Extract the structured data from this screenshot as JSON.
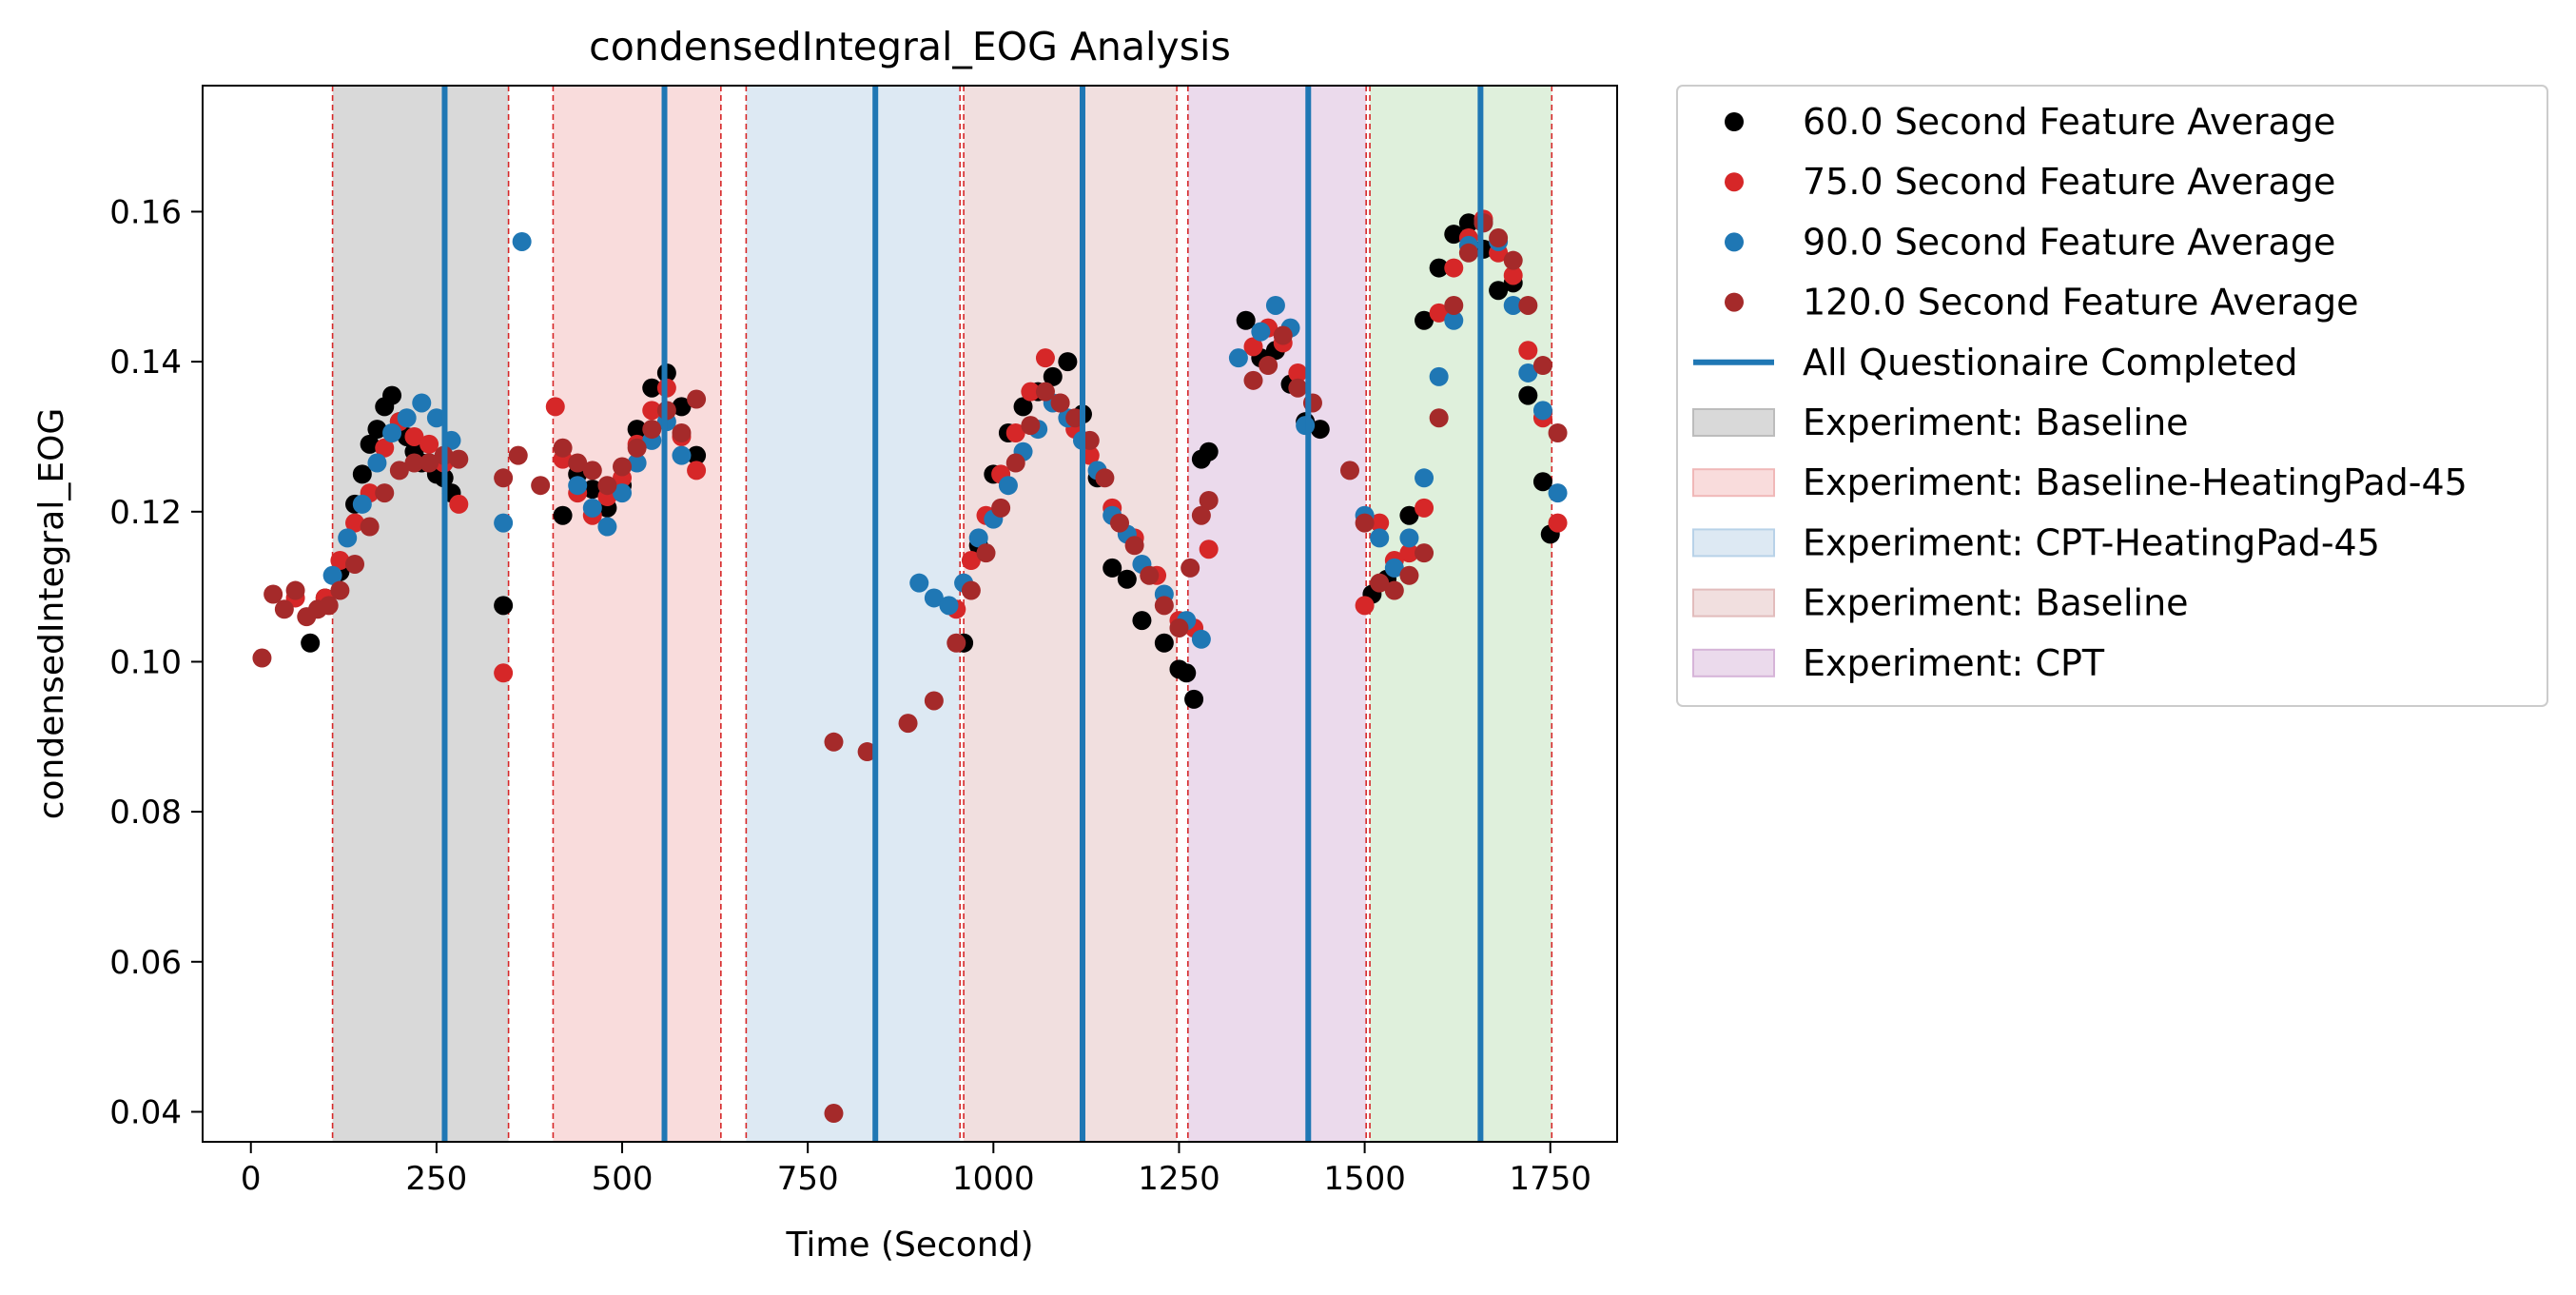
{
  "chart_data": {
    "type": "scatter",
    "title": "condensedIntegral_EOG Analysis",
    "xlabel": "Time (Second)",
    "ylabel": "condensedIntegral_EOG",
    "xlim": [
      -65,
      1840
    ],
    "ylim": [
      0.036,
      0.1768
    ],
    "x_ticks": [
      0,
      250,
      500,
      750,
      1000,
      1250,
      1500,
      1750
    ],
    "x_tick_labels": [
      "0",
      "250",
      "500",
      "750",
      "1000",
      "1250",
      "1500",
      "1750"
    ],
    "y_ticks": [
      0.04,
      0.06,
      0.08,
      0.1,
      0.12,
      0.14,
      0.16
    ],
    "y_tick_labels": [
      "0.04",
      "0.06",
      "0.08",
      "0.10",
      "0.12",
      "0.14",
      "0.16"
    ],
    "grid": false,
    "legend_position": "outside-right",
    "phases": [
      {
        "label": "Experiment: Baseline",
        "start": 110,
        "end": 347,
        "color": "#d9d9d9"
      },
      {
        "label": "Experiment: Baseline-HeatingPad-45",
        "start": 407,
        "end": 633,
        "color": "#f9dcdc"
      },
      {
        "label": "Experiment: CPT-HeatingPad-45",
        "start": 667,
        "end": 955,
        "color": "#dde9f3"
      },
      {
        "label": "Experiment: Baseline",
        "start": 960,
        "end": 1247,
        "color": "#f1dfdf"
      },
      {
        "label": "Experiment: CPT",
        "start": 1262,
        "end": 1502,
        "color": "#ebdaec"
      },
      {
        "label": "",
        "start": 1507,
        "end": 1752,
        "color": "#dff0dc"
      }
    ],
    "questionnaire_completed": {
      "label": "All Questionaire Completed",
      "color": "#1f77b4",
      "x": [
        261,
        557,
        841,
        1120,
        1424,
        1656
      ]
    },
    "series": [
      {
        "name": "60.0 Second Feature Average",
        "color": "#000000",
        "x": [
          80,
          100,
          120,
          140,
          150,
          160,
          170,
          180,
          190,
          200,
          210,
          220,
          230,
          240,
          250,
          260,
          270,
          340,
          420,
          440,
          460,
          480,
          500,
          520,
          540,
          560,
          580,
          600,
          960,
          980,
          1000,
          1020,
          1040,
          1060,
          1080,
          1100,
          1120,
          1140,
          1160,
          1180,
          1200,
          1230,
          1250,
          1260,
          1270,
          1280,
          1290,
          1340,
          1360,
          1380,
          1400,
          1420,
          1440,
          1510,
          1530,
          1560,
          1580,
          1600,
          1620,
          1640,
          1660,
          1680,
          1700,
          1720,
          1740,
          1750
        ],
        "y": [
          0.1025,
          0.1085,
          0.112,
          0.121,
          0.125,
          0.129,
          0.131,
          0.134,
          0.1355,
          0.132,
          0.13,
          0.128,
          0.1265,
          0.1265,
          0.125,
          0.1245,
          0.1225,
          0.1075,
          0.1195,
          0.125,
          0.123,
          0.1205,
          0.1235,
          0.131,
          0.1365,
          0.1385,
          0.134,
          0.1275,
          0.1025,
          0.1155,
          0.125,
          0.1305,
          0.134,
          0.136,
          0.138,
          0.14,
          0.133,
          0.1245,
          0.1125,
          0.111,
          0.1055,
          0.1025,
          0.099,
          0.0985,
          0.095,
          0.127,
          0.128,
          0.1455,
          0.1405,
          0.1415,
          0.137,
          0.132,
          0.131,
          0.109,
          0.111,
          0.1195,
          0.1455,
          0.1525,
          0.157,
          0.1585,
          0.155,
          0.1495,
          0.1505,
          0.1355,
          0.124,
          0.117
        ]
      },
      {
        "name": "75.0 Second Feature Average",
        "color": "#d62728",
        "x": [
          60,
          100,
          120,
          140,
          160,
          180,
          200,
          220,
          240,
          260,
          280,
          340,
          410,
          420,
          440,
          460,
          480,
          500,
          520,
          540,
          560,
          580,
          600,
          950,
          970,
          990,
          1010,
          1030,
          1050,
          1070,
          1090,
          1110,
          1130,
          1160,
          1190,
          1220,
          1250,
          1270,
          1290,
          1350,
          1370,
          1390,
          1410,
          1500,
          1520,
          1540,
          1560,
          1580,
          1600,
          1620,
          1640,
          1660,
          1680,
          1700,
          1720,
          1740,
          1760
        ],
        "y": [
          0.1085,
          0.1085,
          0.1135,
          0.1185,
          0.1225,
          0.1285,
          0.132,
          0.13,
          0.129,
          0.1265,
          0.121,
          0.0985,
          0.134,
          0.127,
          0.1225,
          0.1195,
          0.122,
          0.1245,
          0.129,
          0.1335,
          0.1365,
          0.13,
          0.1255,
          0.107,
          0.1135,
          0.1195,
          0.125,
          0.1305,
          0.136,
          0.1405,
          0.1345,
          0.131,
          0.1275,
          0.1205,
          0.1165,
          0.1115,
          0.1055,
          0.1045,
          0.115,
          0.142,
          0.1445,
          0.1425,
          0.1385,
          0.1075,
          0.1185,
          0.1135,
          0.1145,
          0.1205,
          0.1465,
          0.1525,
          0.1565,
          0.159,
          0.1545,
          0.1515,
          0.1415,
          0.1325,
          0.1185
        ]
      },
      {
        "name": "90.0 Second Feature Average",
        "color": "#1f77b4",
        "x": [
          110,
          130,
          150,
          170,
          190,
          210,
          230,
          250,
          270,
          340,
          365,
          440,
          460,
          480,
          500,
          520,
          540,
          560,
          580,
          900,
          920,
          940,
          960,
          980,
          1000,
          1020,
          1040,
          1060,
          1080,
          1100,
          1120,
          1140,
          1160,
          1180,
          1200,
          1230,
          1260,
          1280,
          1330,
          1360,
          1380,
          1400,
          1420,
          1500,
          1520,
          1540,
          1560,
          1580,
          1600,
          1620,
          1640,
          1660,
          1680,
          1700,
          1720,
          1740,
          1760
        ],
        "y": [
          0.1115,
          0.1165,
          0.121,
          0.1265,
          0.1305,
          0.1325,
          0.1345,
          0.1325,
          0.1295,
          0.1185,
          0.156,
          0.1235,
          0.1205,
          0.118,
          0.1225,
          0.1265,
          0.1295,
          0.132,
          0.1275,
          0.1105,
          0.1085,
          0.1075,
          0.1105,
          0.1165,
          0.119,
          0.1235,
          0.128,
          0.131,
          0.1345,
          0.1325,
          0.1295,
          0.1255,
          0.1195,
          0.117,
          0.113,
          0.109,
          0.1055,
          0.103,
          0.1405,
          0.144,
          0.1475,
          0.1445,
          0.1315,
          0.1195,
          0.1165,
          0.1125,
          0.1165,
          0.1245,
          0.138,
          0.1455,
          0.1555,
          0.1585,
          0.156,
          0.1475,
          0.1385,
          0.1335,
          0.1225
        ]
      },
      {
        "name": "120.0 Second Feature Average",
        "color": "#a52a2a",
        "x": [
          15,
          30,
          45,
          60,
          75,
          90,
          105,
          120,
          140,
          160,
          180,
          200,
          220,
          240,
          260,
          280,
          340,
          360,
          390,
          420,
          440,
          460,
          480,
          500,
          520,
          540,
          560,
          580,
          600,
          785,
          830,
          885,
          920,
          950,
          970,
          990,
          1010,
          1030,
          1050,
          1070,
          1090,
          1110,
          1130,
          1150,
          1170,
          1190,
          1210,
          1230,
          1250,
          1265,
          1280,
          1290,
          1350,
          1370,
          1390,
          1410,
          1430,
          1480,
          1500,
          1520,
          1540,
          1560,
          1580,
          1600,
          1620,
          1640,
          1660,
          1680,
          1700,
          1720,
          1740,
          1760,
          785
        ],
        "y": [
          0.1005,
          0.109,
          0.107,
          0.1095,
          0.106,
          0.107,
          0.1075,
          0.1095,
          0.113,
          0.118,
          0.1225,
          0.1255,
          0.1265,
          0.1265,
          0.1275,
          0.127,
          0.1245,
          0.1275,
          0.1235,
          0.1285,
          0.1265,
          0.1255,
          0.1235,
          0.126,
          0.1285,
          0.131,
          0.1335,
          0.1305,
          0.135,
          0.0893,
          0.088,
          0.0918,
          0.0948,
          0.1025,
          0.1095,
          0.1145,
          0.1205,
          0.1265,
          0.1315,
          0.136,
          0.1345,
          0.1325,
          0.1295,
          0.1245,
          0.1185,
          0.1155,
          0.1115,
          0.1075,
          0.1045,
          0.1125,
          0.1195,
          0.1215,
          0.1375,
          0.1395,
          0.1435,
          0.1365,
          0.1345,
          0.1255,
          0.1185,
          0.1105,
          0.1095,
          0.1115,
          0.1145,
          0.1325,
          0.1475,
          0.1545,
          0.1585,
          0.1565,
          0.1535,
          0.1475,
          0.1395,
          0.1305,
          0.0398
        ]
      }
    ]
  },
  "legend": {
    "items": [
      {
        "type": "marker",
        "label": "60.0 Second Feature Average",
        "color": "#000000"
      },
      {
        "type": "marker",
        "label": "75.0 Second Feature Average",
        "color": "#d62728"
      },
      {
        "type": "marker",
        "label": "90.0 Second Feature Average",
        "color": "#1f77b4"
      },
      {
        "type": "marker",
        "label": "120.0 Second Feature Average",
        "color": "#a52a2a"
      },
      {
        "type": "line",
        "label": "All Questionaire Completed",
        "color": "#1f77b4"
      },
      {
        "type": "patch",
        "label": "Experiment: Baseline",
        "color": "#d9d9d9",
        "edge": "#bcbcbc"
      },
      {
        "type": "patch",
        "label": "Experiment: Baseline-HeatingPad-45",
        "color": "#f9dcdc",
        "edge": "#f0b8b8"
      },
      {
        "type": "patch",
        "label": "Experiment: CPT-HeatingPad-45",
        "color": "#dde9f3",
        "edge": "#b8d2e8"
      },
      {
        "type": "patch",
        "label": "Experiment: Baseline",
        "color": "#f1dfdf",
        "edge": "#e2bcbc"
      },
      {
        "type": "patch",
        "label": "Experiment: CPT",
        "color": "#ebdaec",
        "edge": "#d6b4d8"
      }
    ]
  }
}
